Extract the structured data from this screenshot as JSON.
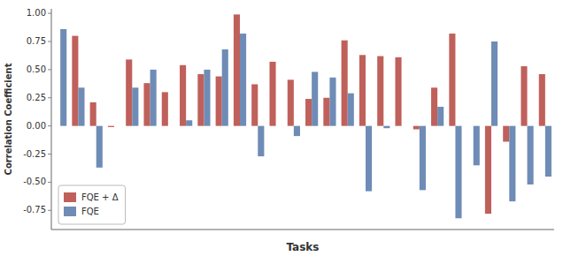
{
  "chart_data": {
    "type": "bar",
    "x_label": "Tasks",
    "y_label": "Correlation Coefficient",
    "categories": [
      null,
      null,
      null,
      null,
      null,
      null,
      null,
      null,
      null,
      null,
      null,
      null,
      null,
      null,
      null,
      null,
      null,
      null,
      null,
      null,
      null,
      null,
      null,
      null,
      null,
      null,
      null,
      null
    ],
    "series": [
      {
        "name": "FQE + Δ",
        "color": "#c0605a",
        "values": [
          0.0,
          0.8,
          0.21,
          -0.01,
          0.59,
          0.38,
          0.3,
          0.54,
          0.46,
          0.44,
          0.99,
          0.37,
          0.57,
          0.41,
          0.24,
          0.25,
          0.76,
          0.63,
          0.62,
          0.61,
          -0.03,
          0.34,
          0.82,
          0.0,
          -0.78,
          -0.14,
          0.53,
          0.46
        ]
      },
      {
        "name": "FQE",
        "color": "#6e8cb5",
        "values": [
          0.86,
          0.34,
          -0.37,
          0.0,
          0.34,
          0.5,
          0.0,
          0.05,
          0.5,
          0.68,
          0.82,
          -0.27,
          0.0,
          -0.09,
          0.48,
          0.43,
          0.29,
          -0.58,
          -0.02,
          0.0,
          -0.57,
          0.17,
          -0.82,
          -0.35,
          0.75,
          -0.67,
          -0.52,
          -0.45
        ]
      }
    ],
    "ylim": [
      -0.92,
      1.04
    ],
    "yticks": [
      -0.75,
      {
        "value": -0.5,
        "label": "-0.50"
      },
      -0.25,
      {
        "value": 0.0,
        "label": "0.00"
      },
      0.25,
      {
        "value": 0.5,
        "label": "0.50"
      },
      0.75,
      {
        "value": 1.0,
        "label": "1.00"
      }
    ],
    "legend": "lower left",
    "grid": false,
    "tick_labels": "y"
  }
}
